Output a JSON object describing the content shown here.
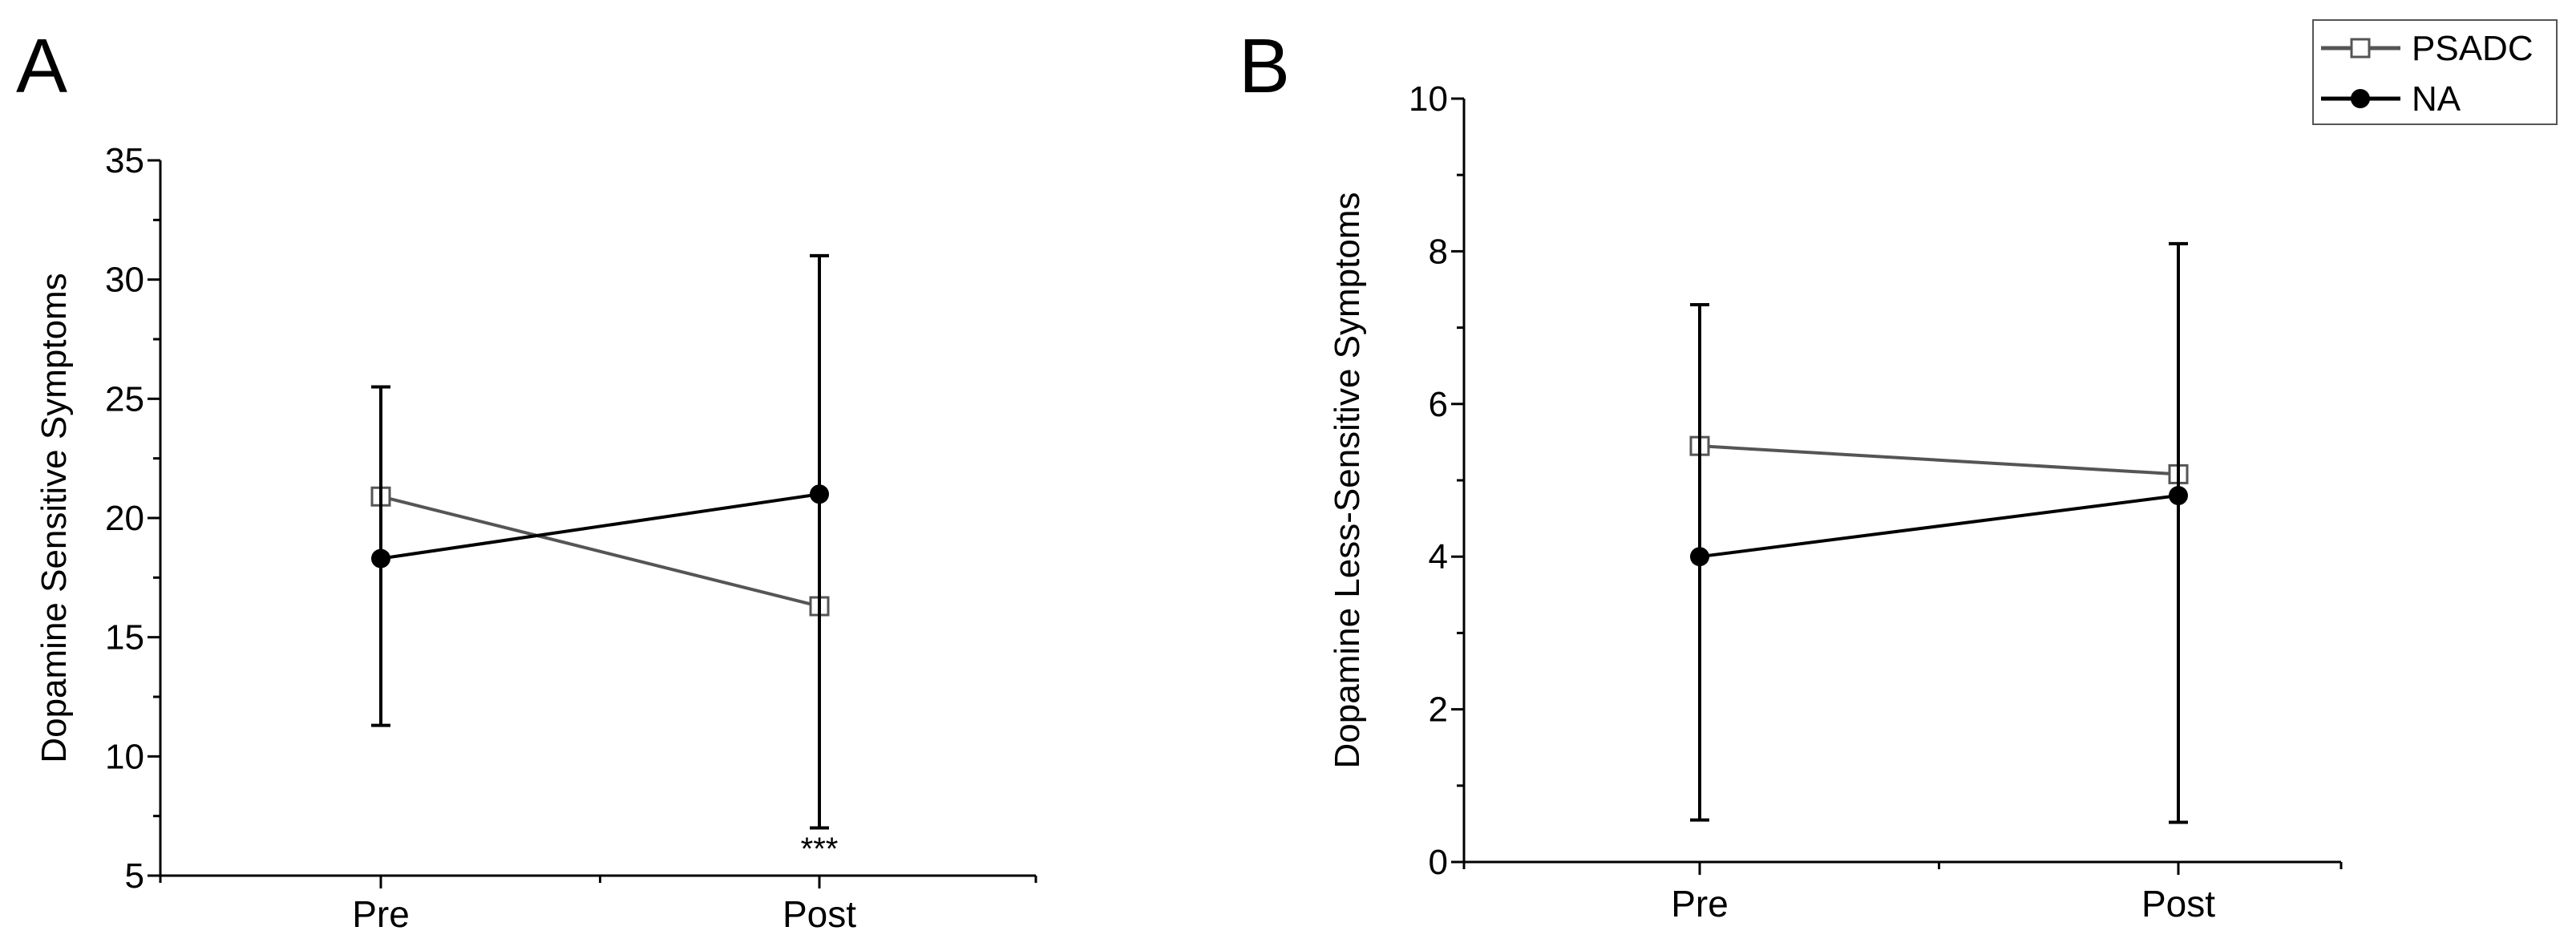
{
  "panels": [
    {
      "label": "A"
    },
    {
      "label": "B"
    }
  ],
  "legend": {
    "placement": "top-right",
    "entries": [
      {
        "name": "PSADC",
        "marker": "open-square",
        "color": "#555555"
      },
      {
        "name": "NA",
        "marker": "filled-circle",
        "color": "#000000"
      }
    ]
  },
  "chart_data": [
    {
      "type": "line",
      "panel": "A",
      "ylabel": "Dopamine Sensitive Symptoms",
      "xlabel": "",
      "categories": [
        "Pre",
        "Post"
      ],
      "ylim": [
        5,
        35
      ],
      "yticks": [
        5,
        10,
        15,
        20,
        25,
        30,
        35
      ],
      "grid": false,
      "annotations": [
        {
          "text": "***",
          "category": "Post"
        }
      ],
      "series": [
        {
          "name": "PSADC",
          "marker": "open-square",
          "color": "#555555",
          "values": [
            20.9,
            16.3
          ],
          "error_low": [],
          "error_high": []
        },
        {
          "name": "NA",
          "marker": "filled-circle",
          "color": "#000000",
          "values": [
            18.3,
            21.0
          ],
          "error_low": [
            11.3,
            7.0
          ],
          "error_high": [
            25.5,
            31.0
          ]
        }
      ]
    },
    {
      "type": "line",
      "panel": "B",
      "ylabel": "Dopamine Less-Sensitive Symptoms",
      "xlabel": "",
      "categories": [
        "Pre",
        "Post"
      ],
      "ylim": [
        0,
        10
      ],
      "yticks": [
        0,
        2,
        4,
        6,
        8,
        10
      ],
      "grid": false,
      "annotations": [],
      "series": [
        {
          "name": "PSADC",
          "marker": "open-square",
          "color": "#555555",
          "values": [
            5.45,
            5.08
          ],
          "error_low": [],
          "error_high": []
        },
        {
          "name": "NA",
          "marker": "filled-circle",
          "color": "#000000",
          "values": [
            4.0,
            4.8
          ],
          "error_low": [
            0.55,
            0.52
          ],
          "error_high": [
            7.3,
            8.1
          ]
        }
      ]
    }
  ]
}
